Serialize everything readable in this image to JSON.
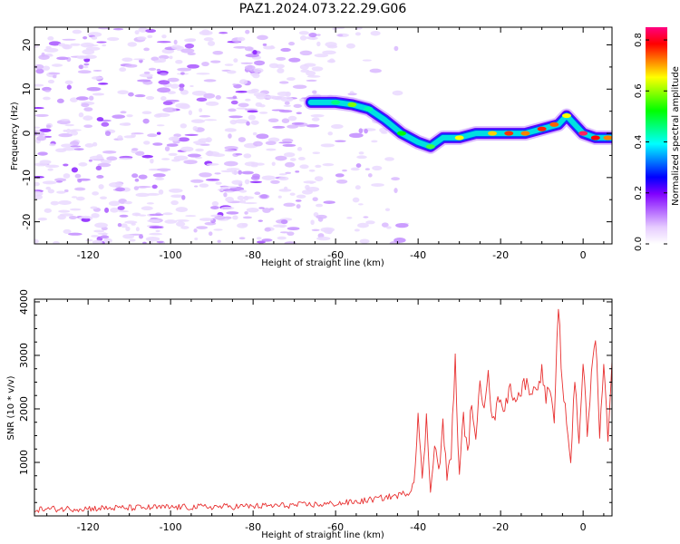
{
  "title": "PAZ1.2024.073.22.29.G06",
  "chart_data": [
    {
      "type": "heatmap",
      "xlabel": "Height of straight line (km)",
      "ylabel": "Frequency (Hz)",
      "xlim": [
        -133,
        7
      ],
      "ylim": [
        -25,
        24
      ],
      "x_ticks": [
        -120,
        -100,
        -80,
        -60,
        -40,
        -20,
        0
      ],
      "y_ticks": [
        -20,
        -10,
        0,
        10,
        20
      ],
      "colorbar": {
        "label": "Normalized spectral amplitude",
        "range": [
          0,
          0.85
        ],
        "ticks": [
          0.0,
          0.2,
          0.4,
          0.6,
          0.8
        ],
        "colormap": [
          "#ffffff",
          "#c28cff",
          "#8000ff",
          "#0000ff",
          "#00ffff",
          "#00ff00",
          "#ffff00",
          "#ff8000",
          "#ff0000",
          "#ff0080"
        ]
      },
      "signal_ridge": {
        "x": [
          -66,
          -60,
          -56,
          -52,
          -48,
          -44,
          -40,
          -37,
          -34,
          -30,
          -26,
          -22,
          -18,
          -14,
          -10,
          -6,
          -4,
          -2,
          0,
          3,
          7
        ],
        "freq": [
          7,
          7,
          6.5,
          5.5,
          3,
          0,
          -2,
          -3,
          -1,
          -1,
          0,
          0,
          0,
          0,
          1,
          2,
          4,
          2,
          0,
          -1,
          -1
        ]
      }
    },
    {
      "type": "line",
      "xlabel": "Height of straight line (km)",
      "ylabel": "SNR (10 * v/v)",
      "xlim": [
        -133,
        7
      ],
      "ylim": [
        0,
        4050
      ],
      "x_ticks": [
        -120,
        -100,
        -80,
        -60,
        -40,
        -20,
        0
      ],
      "y_ticks": [
        1000,
        2000,
        3000,
        4000
      ],
      "series": [
        {
          "color": "#e83030",
          "points": [
            [
              -133,
              120
            ],
            [
              -128,
              130
            ],
            [
              -120,
              140
            ],
            [
              -110,
              150
            ],
            [
              -100,
              160
            ],
            [
              -90,
              170
            ],
            [
              -80,
              180
            ],
            [
              -70,
              200
            ],
            [
              -62,
              220
            ],
            [
              -55,
              260
            ],
            [
              -50,
              320
            ],
            [
              -45,
              380
            ],
            [
              -42,
              450
            ],
            [
              -41,
              700
            ],
            [
              -40,
              1900
            ],
            [
              -39,
              600
            ],
            [
              -38,
              1800
            ],
            [
              -37,
              500
            ],
            [
              -36,
              1400
            ],
            [
              -35,
              800
            ],
            [
              -34,
              1700
            ],
            [
              -33,
              700
            ],
            [
              -32,
              1200
            ],
            [
              -31,
              2900
            ],
            [
              -30,
              700
            ],
            [
              -29,
              1900
            ],
            [
              -28,
              1100
            ],
            [
              -27,
              2200
            ],
            [
              -26,
              1300
            ],
            [
              -25,
              2500
            ],
            [
              -24,
              2100
            ],
            [
              -23,
              2800
            ],
            [
              -22,
              1700
            ],
            [
              -21,
              2000
            ],
            [
              -20,
              2300
            ],
            [
              -19,
              1900
            ],
            [
              -18,
              2400
            ],
            [
              -16,
              2200
            ],
            [
              -14,
              2500
            ],
            [
              -12,
              2300
            ],
            [
              -10,
              2700
            ],
            [
              -9,
              2200
            ],
            [
              -8,
              2400
            ],
            [
              -7,
              1600
            ],
            [
              -6,
              4000
            ],
            [
              -5,
              2300
            ],
            [
              -4,
              1800
            ],
            [
              -3,
              1000
            ],
            [
              -2,
              2600
            ],
            [
              -1,
              1400
            ],
            [
              0,
              2900
            ],
            [
              1,
              1500
            ],
            [
              2,
              2600
            ],
            [
              3,
              3400
            ],
            [
              4,
              1600
            ],
            [
              5,
              2800
            ],
            [
              6,
              1500
            ],
            [
              7,
              2900
            ]
          ]
        }
      ]
    }
  ]
}
